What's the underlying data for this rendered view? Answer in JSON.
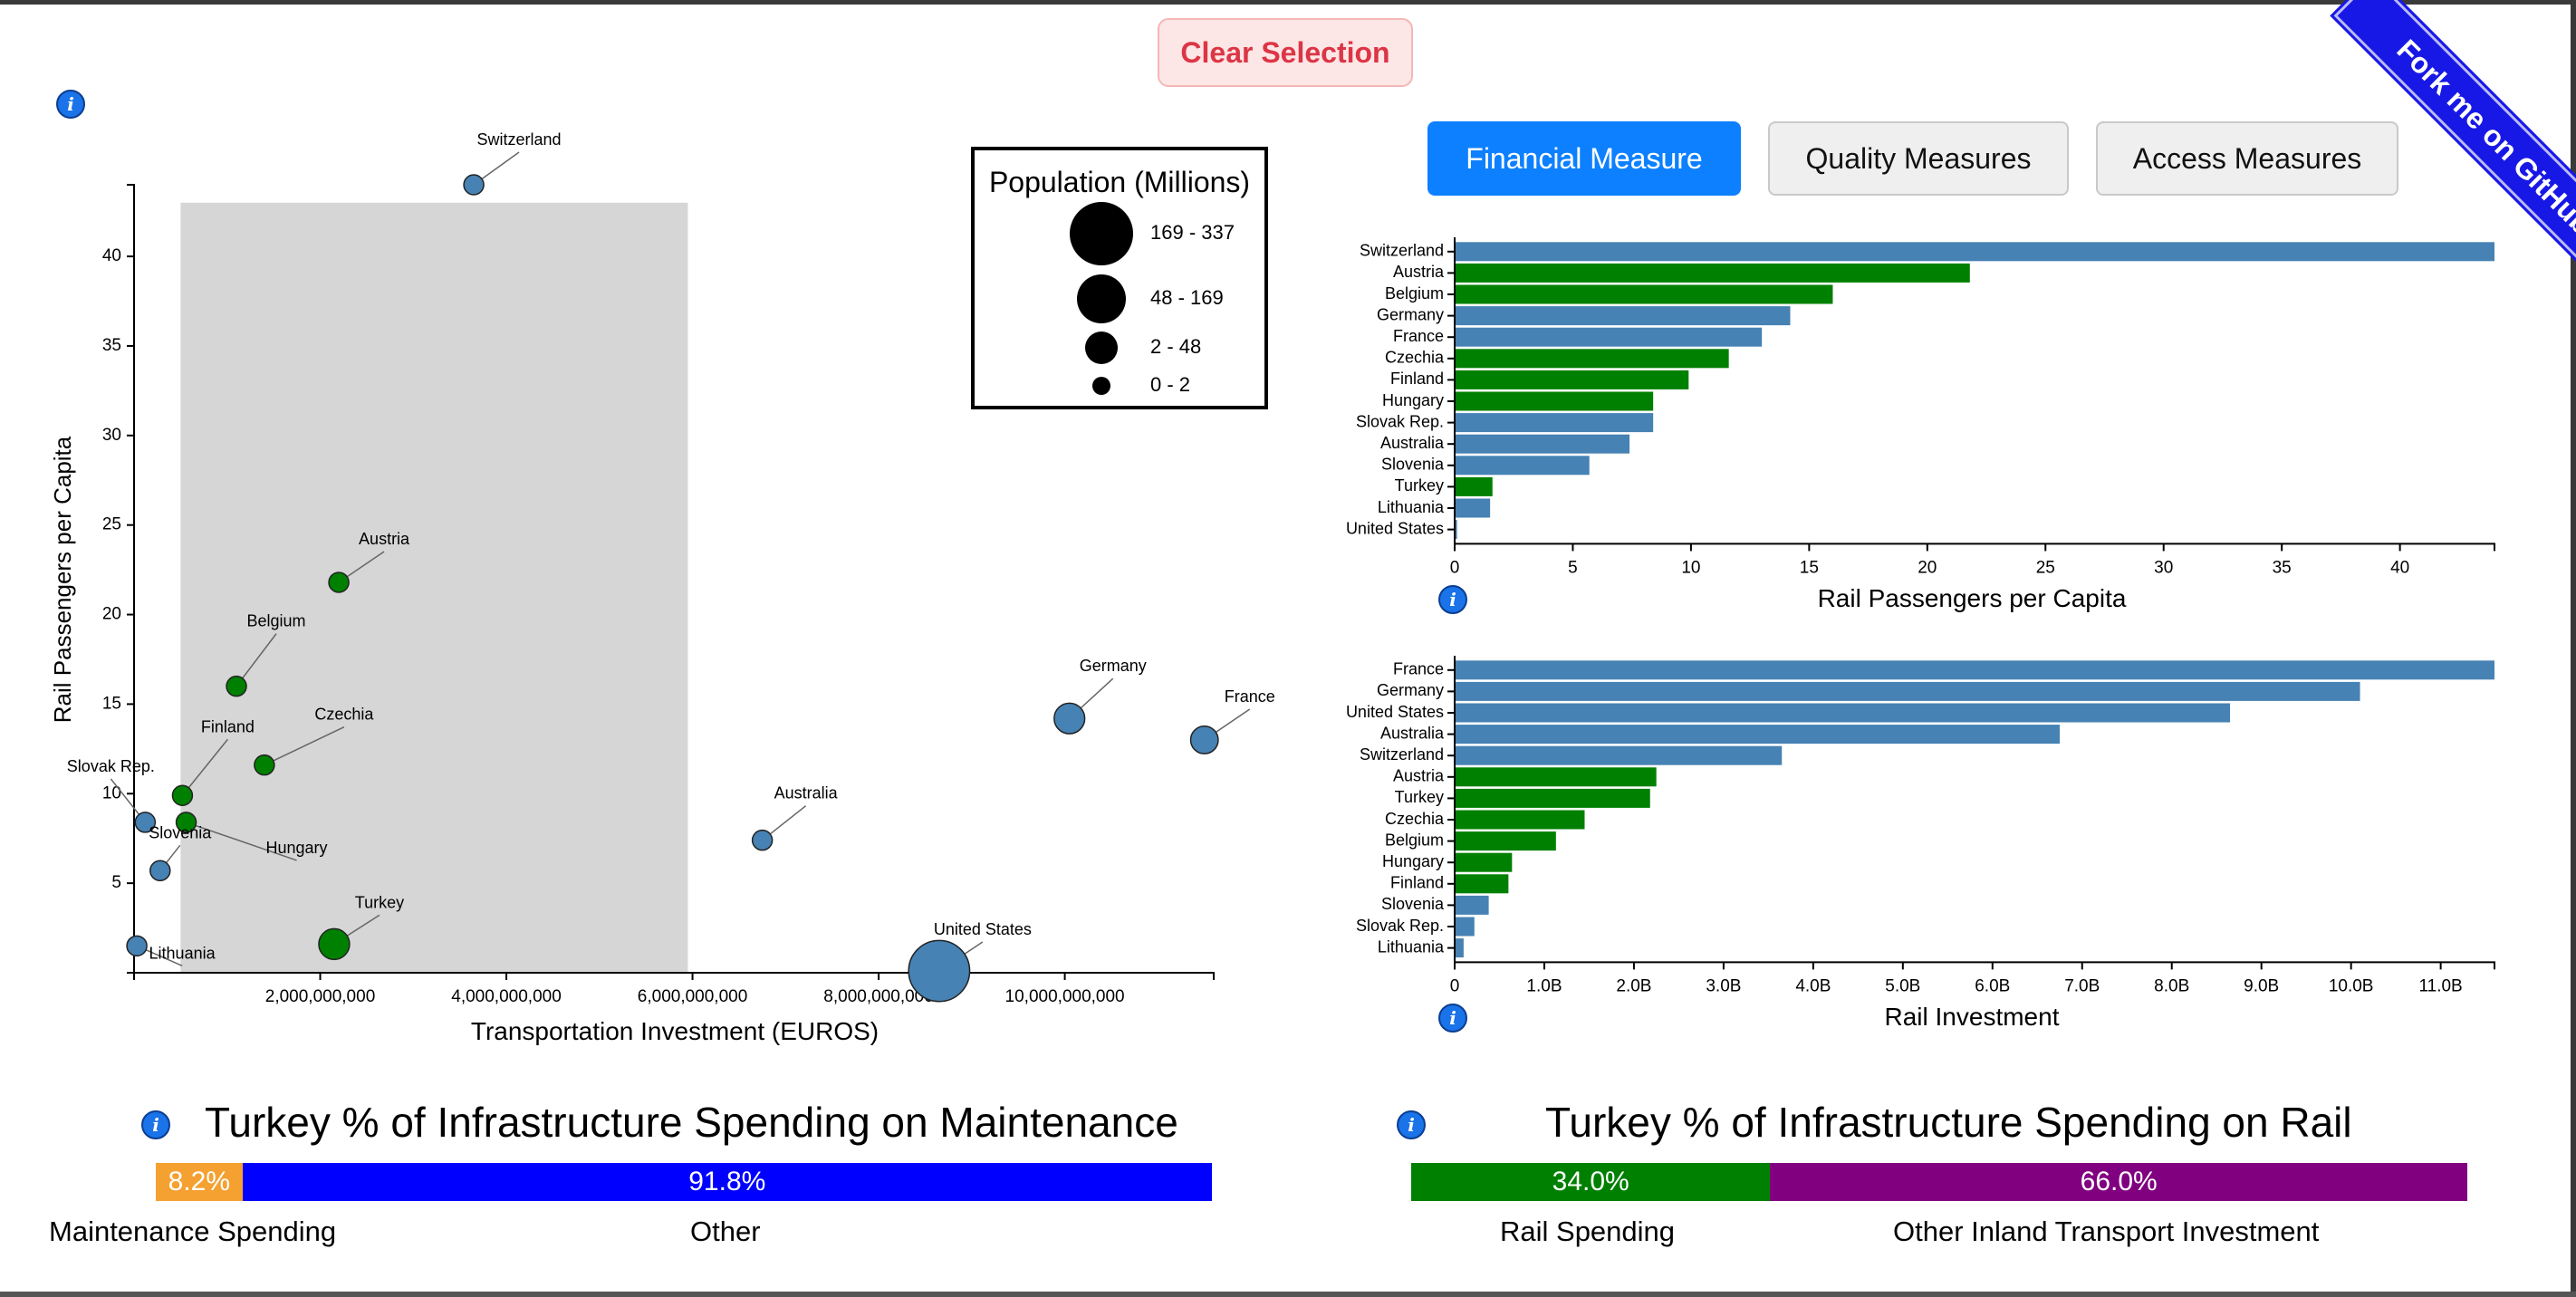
{
  "clear_button": {
    "label": "Clear Selection"
  },
  "tabs": [
    {
      "label": "Financial Measure",
      "active": true
    },
    {
      "label": "Quality Measures",
      "active": false
    },
    {
      "label": "Access Measures",
      "active": false
    }
  ],
  "ribbon": {
    "label": "Fork me on GitHub"
  },
  "colors": {
    "selected": "#008000",
    "unselected": "#4682b4",
    "maintenance": "#f5a131",
    "other": "#0000ff",
    "rail": "#008000",
    "other_inland": "#800080",
    "accent": "#0d80ff"
  },
  "chart_data": [
    {
      "type": "scatter",
      "xlabel": "Transportation Investment (EUROS)",
      "ylabel": "Rail Passengers per Capita",
      "xlim": [
        0,
        11600000000
      ],
      "ylim": [
        0,
        44
      ],
      "x_ticks": [
        "2,000,000,000",
        "4,000,000,000",
        "6,000,000,000",
        "8,000,000,000",
        "10,000,000,000"
      ],
      "x_tick_values": [
        2000000000,
        4000000000,
        6000000000,
        8000000000,
        10000000000
      ],
      "y_ticks": [
        "5",
        "10",
        "15",
        "20",
        "25",
        "30",
        "35",
        "40"
      ],
      "y_tick_values": [
        5,
        10,
        15,
        20,
        25,
        30,
        35,
        40
      ],
      "brush_selection": {
        "x_range": [
          500000000,
          5950000000
        ],
        "y_range": [
          0,
          43
        ]
      },
      "points": [
        {
          "name": "Switzerland",
          "x": 3650000000,
          "y": 44.0,
          "population": 8.6,
          "selected": false
        },
        {
          "name": "Austria",
          "x": 2200000000,
          "y": 21.8,
          "population": 8.9,
          "selected": true
        },
        {
          "name": "Belgium",
          "x": 1100000000,
          "y": 16.0,
          "population": 11.5,
          "selected": true
        },
        {
          "name": "Czechia",
          "x": 1400000000,
          "y": 11.6,
          "population": 10.5,
          "selected": true
        },
        {
          "name": "Finland",
          "x": 520000000,
          "y": 9.9,
          "population": 5.5,
          "selected": true
        },
        {
          "name": "Hungary",
          "x": 560000000,
          "y": 8.4,
          "population": 9.7,
          "selected": true
        },
        {
          "name": "Slovak Rep.",
          "x": 120000000,
          "y": 8.4,
          "population": 5.4,
          "selected": false
        },
        {
          "name": "Slovenia",
          "x": 280000000,
          "y": 5.7,
          "population": 2.1,
          "selected": false
        },
        {
          "name": "Turkey",
          "x": 2150000000,
          "y": 1.6,
          "population": 84.0,
          "selected": true
        },
        {
          "name": "Lithuania",
          "x": 30000000,
          "y": 1.5,
          "population": 2.8,
          "selected": false
        },
        {
          "name": "Australia",
          "x": 6750000000,
          "y": 7.4,
          "population": 25.7,
          "selected": false
        },
        {
          "name": "Germany",
          "x": 10050000000,
          "y": 14.2,
          "population": 83.2,
          "selected": false
        },
        {
          "name": "France",
          "x": 11500000000,
          "y": 13.0,
          "population": 67.4,
          "selected": false
        },
        {
          "name": "United States",
          "x": 8650000000,
          "y": 0.1,
          "population": 331.0,
          "selected": false
        }
      ],
      "legend": {
        "title": "Population (Millions)",
        "entries": [
          "169 - 337",
          "48 - 169",
          "2 - 48",
          "0 - 2"
        ]
      }
    },
    {
      "type": "bar",
      "orientation": "horizontal",
      "xlabel": "Rail Passengers per Capita",
      "xlim": [
        0,
        44
      ],
      "x_ticks": [
        "0",
        "5",
        "10",
        "15",
        "20",
        "25",
        "30",
        "35",
        "40"
      ],
      "x_tick_values": [
        0,
        5,
        10,
        15,
        20,
        25,
        30,
        35,
        40
      ],
      "categories": [
        "Switzerland",
        "Austria",
        "Belgium",
        "Germany",
        "France",
        "Czechia",
        "Finland",
        "Hungary",
        "Slovak Rep.",
        "Australia",
        "Slovenia",
        "Turkey",
        "Lithuania",
        "United States"
      ],
      "values": [
        44.0,
        21.8,
        16.0,
        14.2,
        13.0,
        11.6,
        9.9,
        8.4,
        8.4,
        7.4,
        5.7,
        1.6,
        1.5,
        0.1
      ],
      "selected": [
        false,
        true,
        true,
        false,
        false,
        true,
        true,
        true,
        false,
        false,
        false,
        true,
        false,
        false
      ]
    },
    {
      "type": "bar",
      "orientation": "horizontal",
      "xlabel": "Rail Investment",
      "xlim": [
        0,
        11600000000
      ],
      "x_ticks": [
        "0",
        "1.0B",
        "2.0B",
        "3.0B",
        "4.0B",
        "5.0B",
        "6.0B",
        "7.0B",
        "8.0B",
        "9.0B",
        "10.0B",
        "11.0B"
      ],
      "x_tick_values": [
        0,
        1000000000,
        2000000000,
        3000000000,
        4000000000,
        5000000000,
        6000000000,
        7000000000,
        8000000000,
        9000000000,
        10000000000,
        11000000000
      ],
      "categories": [
        "France",
        "Germany",
        "United States",
        "Australia",
        "Switzerland",
        "Austria",
        "Turkey",
        "Czechia",
        "Belgium",
        "Hungary",
        "Finland",
        "Slovenia",
        "Slovak Rep.",
        "Lithuania"
      ],
      "values": [
        11600000000,
        10100000000,
        8650000000,
        6750000000,
        3650000000,
        2250000000,
        2180000000,
        1450000000,
        1130000000,
        640000000,
        600000000,
        380000000,
        220000000,
        100000000
      ],
      "selected": [
        false,
        false,
        false,
        false,
        false,
        true,
        true,
        true,
        true,
        true,
        true,
        false,
        false,
        false
      ]
    }
  ],
  "maintenance": {
    "title": "Turkey % of Infrastructure Spending on Maintenance",
    "segments": [
      {
        "label": "Maintenance Spending",
        "value": 8.2,
        "text": "8.2%"
      },
      {
        "label": "Other",
        "value": 91.8,
        "text": "91.8%"
      }
    ]
  },
  "rail_share": {
    "title": "Turkey % of Infrastructure Spending on Rail",
    "segments": [
      {
        "label": "Rail Spending",
        "value": 34.0,
        "text": "34.0%"
      },
      {
        "label": "Other Inland Transport Investment",
        "value": 66.0,
        "text": "66.0%"
      }
    ]
  }
}
